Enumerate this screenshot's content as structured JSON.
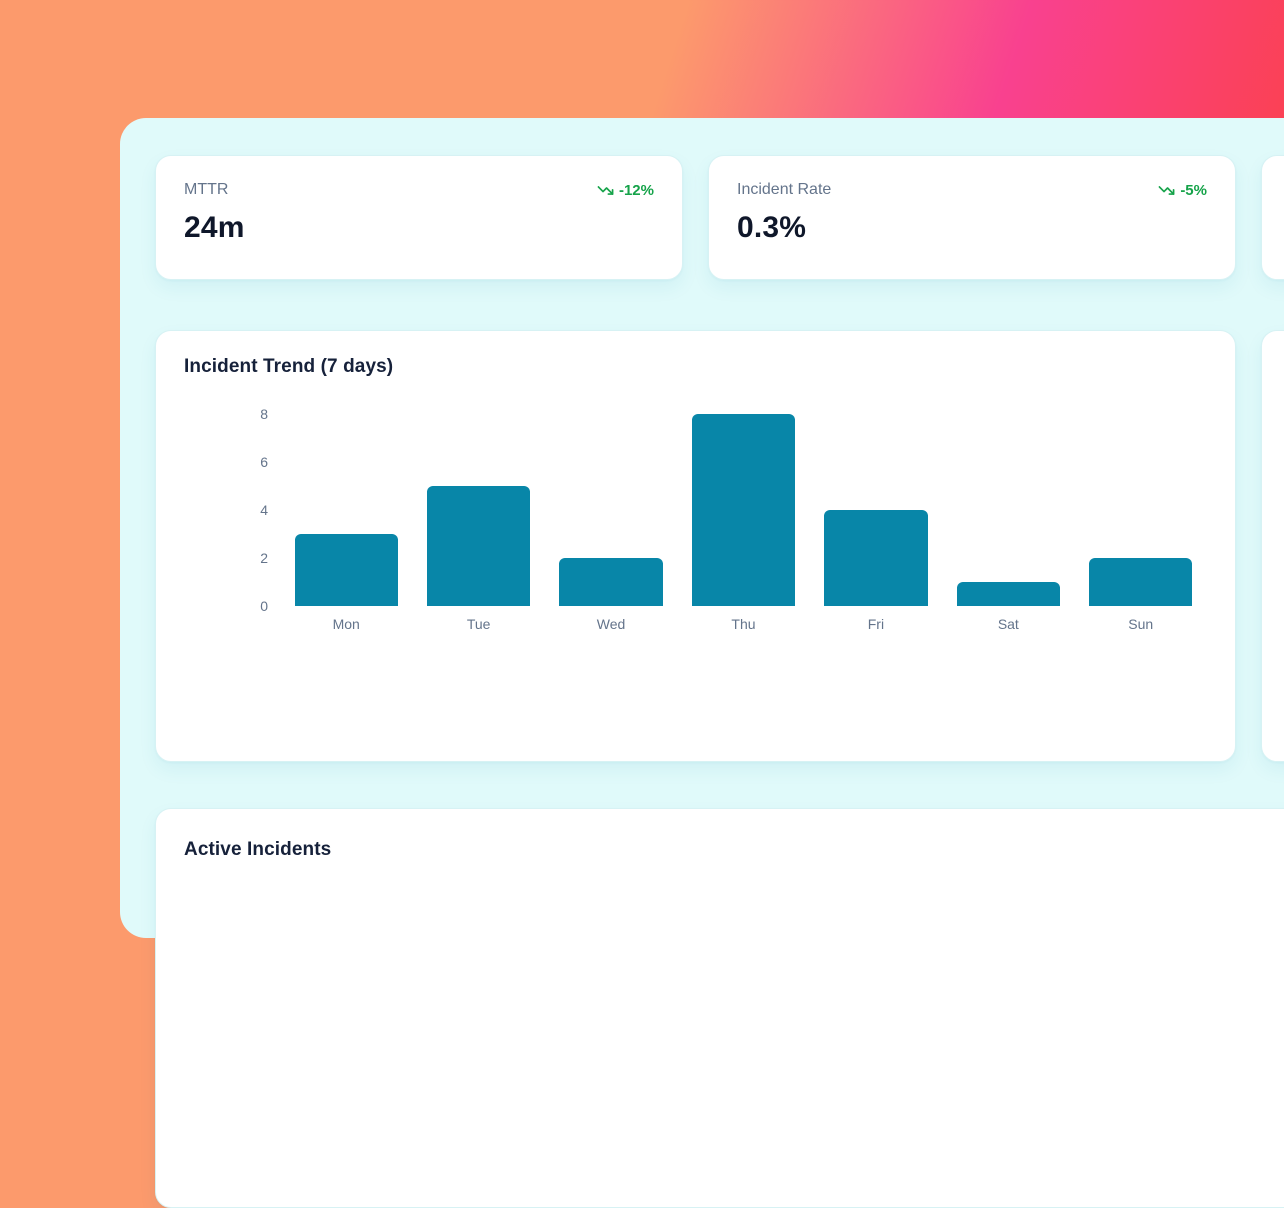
{
  "kpi_cards": [
    {
      "label": "MTTR",
      "value": "24m",
      "trend": "-12%",
      "trend_direction": "down"
    },
    {
      "label": "Incident Rate",
      "value": "0.3%",
      "trend": "-5%",
      "trend_direction": "down"
    }
  ],
  "chart_card": {
    "title": "Incident Trend (7 days)"
  },
  "chart_data": {
    "type": "bar",
    "title": "Incident Trend (7 days)",
    "categories": [
      "Mon",
      "Tue",
      "Wed",
      "Thu",
      "Fri",
      "Sat",
      "Sun"
    ],
    "values": [
      3,
      5,
      2,
      8,
      4,
      1,
      2
    ],
    "xlabel": "",
    "ylabel": "",
    "ylim": [
      0,
      8
    ],
    "yticks": [
      8,
      6,
      4,
      2,
      0
    ],
    "grid": false,
    "legend": false,
    "bar_color": "#0886a8"
  },
  "bottom_card": {
    "title": "Active Incidents"
  },
  "colors": {
    "trend_green": "#16a34a",
    "bar_teal": "#0886a8",
    "panel_mint": "#e0fafa",
    "value_navy": "#0f172a",
    "label_slate": "#64748b",
    "gradient_orange": "#fc9a6c",
    "gradient_pink": "#f9418f",
    "gradient_red": "#fb4150"
  }
}
